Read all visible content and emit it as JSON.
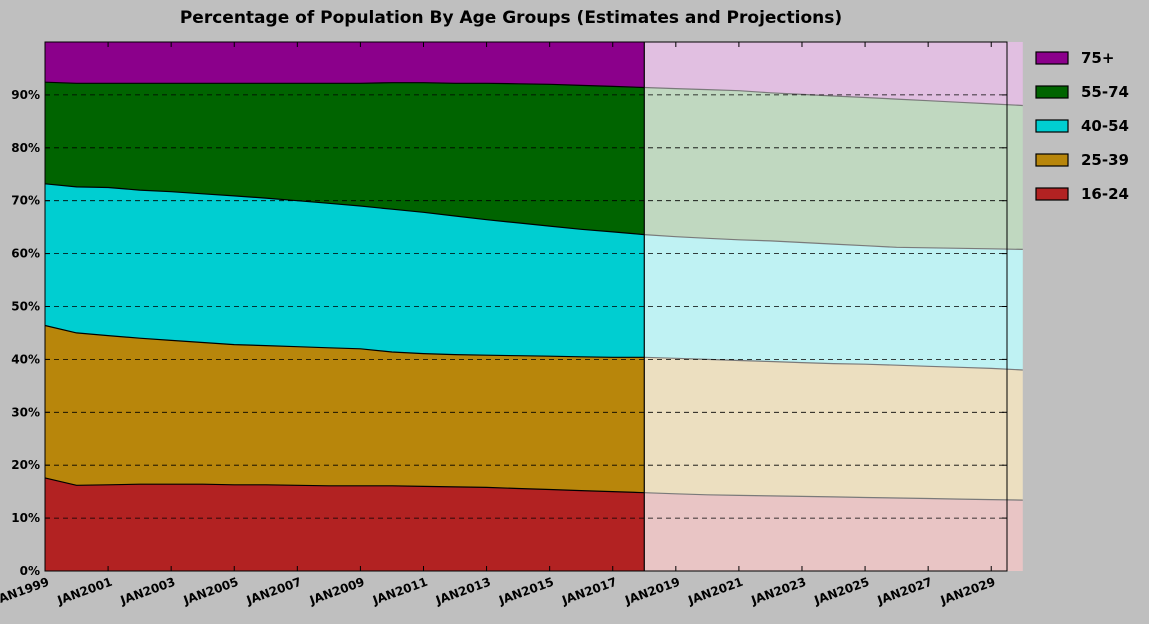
{
  "chart_data": {
    "type": "area",
    "stacked": true,
    "title": "Percentage of Population By Age Groups (Estimates and Projections)",
    "xlabel": "",
    "ylabel": "",
    "ylim": [
      0,
      100
    ],
    "xlim": [
      1999,
      2029.5
    ],
    "y_tick_values": [
      0,
      10,
      20,
      30,
      40,
      50,
      60,
      70,
      80,
      90
    ],
    "y_tick_labels": [
      "0%",
      "10%",
      "20%",
      "30%",
      "40%",
      "50%",
      "60%",
      "70%",
      "80%",
      "90%"
    ],
    "x_tick_values": [
      1999,
      2001,
      2003,
      2005,
      2007,
      2009,
      2011,
      2013,
      2015,
      2017,
      2019,
      2021,
      2023,
      2025,
      2027,
      2029
    ],
    "x_tick_labels": [
      "JAN1999",
      "JAN2001",
      "JAN2003",
      "JAN2005",
      "JAN2007",
      "JAN2009",
      "JAN2011",
      "JAN2013",
      "JAN2015",
      "JAN2017",
      "JAN2019",
      "JAN2021",
      "JAN2023",
      "JAN2025",
      "JAN2027",
      "JAN2029"
    ],
    "grid": "horizontal dashed",
    "legend_position": "outside-right-top",
    "estimate_end": 2018,
    "estimates": {
      "x": [
        1999,
        2000,
        2001,
        2002,
        2003,
        2004,
        2005,
        2006,
        2007,
        2008,
        2009,
        2010,
        2011,
        2012,
        2013,
        2014,
        2015,
        2016,
        2017,
        2018
      ],
      "cumulative_tops": {
        "16-24": [
          17.6,
          16.2,
          16.3,
          16.4,
          16.4,
          16.4,
          16.3,
          16.3,
          16.2,
          16.1,
          16.1,
          16.1,
          16.0,
          15.9,
          15.8,
          15.6,
          15.4,
          15.2,
          15.0,
          14.8
        ],
        "25-39": [
          46.4,
          45.0,
          44.5,
          44.0,
          43.6,
          43.2,
          42.8,
          42.6,
          42.4,
          42.2,
          42.0,
          41.4,
          41.1,
          40.9,
          40.8,
          40.7,
          40.6,
          40.5,
          40.4,
          40.4
        ],
        "40-54": [
          73.2,
          72.6,
          72.5,
          72.0,
          71.7,
          71.3,
          70.9,
          70.5,
          70.0,
          69.5,
          69.0,
          68.4,
          67.8,
          67.1,
          66.4,
          65.8,
          65.2,
          64.6,
          64.1,
          63.6
        ],
        "55-74": [
          92.4,
          92.2,
          92.2,
          92.2,
          92.2,
          92.2,
          92.2,
          92.2,
          92.2,
          92.2,
          92.2,
          92.3,
          92.3,
          92.2,
          92.2,
          92.1,
          92.0,
          91.8,
          91.6,
          91.4
        ],
        "75+": [
          100,
          100,
          100,
          100,
          100,
          100,
          100,
          100,
          100,
          100,
          100,
          100,
          100,
          100,
          100,
          100,
          100,
          100,
          100,
          100
        ]
      }
    },
    "projections": {
      "x": [
        2018,
        2019,
        2020,
        2021,
        2022,
        2023,
        2024,
        2025,
        2026,
        2027,
        2028,
        2029,
        2030
      ],
      "cumulative_tops": {
        "16-24": [
          14.8,
          14.6,
          14.4,
          14.3,
          14.2,
          14.1,
          14.0,
          13.9,
          13.8,
          13.7,
          13.6,
          13.5,
          13.4
        ],
        "25-39": [
          40.4,
          40.2,
          40.0,
          39.8,
          39.6,
          39.4,
          39.2,
          39.1,
          38.9,
          38.7,
          38.5,
          38.3,
          38.0
        ],
        "40-54": [
          63.6,
          63.2,
          62.9,
          62.6,
          62.4,
          62.1,
          61.8,
          61.5,
          61.2,
          61.1,
          61.0,
          60.9,
          60.8
        ],
        "55-74": [
          91.4,
          91.2,
          91.0,
          90.8,
          90.4,
          90.1,
          89.8,
          89.5,
          89.2,
          88.9,
          88.6,
          88.3,
          88.0
        ],
        "75+": [
          100,
          100,
          100,
          100,
          100,
          100,
          100,
          100,
          100,
          100,
          100,
          100,
          100
        ]
      }
    },
    "series": [
      {
        "name": "16-24",
        "color": "#b22222",
        "projection_color": "#e9c5c5"
      },
      {
        "name": "25-39",
        "color": "#b8860b",
        "projection_color": "#ecdfc0"
      },
      {
        "name": "40-54",
        "color": "#00ced1",
        "projection_color": "#bff2f3"
      },
      {
        "name": "55-74",
        "color": "#006400",
        "projection_color": "#c0d8c0"
      },
      {
        "name": "75+",
        "color": "#8b008b",
        "projection_color": "#e1bfe1"
      }
    ],
    "legend": [
      {
        "label": "75+",
        "color": "#8b008b"
      },
      {
        "label": "55-74",
        "color": "#006400"
      },
      {
        "label": "40-54",
        "color": "#00ced1"
      },
      {
        "label": "25-39",
        "color": "#b8860b"
      },
      {
        "label": "16-24",
        "color": "#b22222"
      }
    ]
  }
}
